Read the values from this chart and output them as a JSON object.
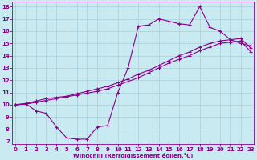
{
  "xlabel": "Windchill (Refroidissement éolien,°C)",
  "bg_color": "#c8eaf0",
  "grid_color": "#a8d0dc",
  "line_color": "#880088",
  "xmin": 0,
  "xmax": 23,
  "ymin": 7,
  "ymax": 18,
  "xticks": [
    0,
    1,
    2,
    3,
    4,
    5,
    6,
    7,
    8,
    9,
    10,
    11,
    12,
    13,
    14,
    15,
    16,
    17,
    18,
    19,
    20,
    21,
    22,
    23
  ],
  "yticks": [
    7,
    8,
    9,
    10,
    11,
    12,
    13,
    14,
    15,
    16,
    17,
    18
  ],
  "line1_x": [
    0,
    1,
    2,
    3,
    4,
    5,
    6,
    7,
    8,
    9,
    10,
    11,
    12,
    13,
    14,
    15,
    16,
    17,
    18,
    19,
    20,
    21,
    22,
    23
  ],
  "line1_y": [
    10,
    10.1,
    9.5,
    9.3,
    8.2,
    7.3,
    7.2,
    7.2,
    8.2,
    8.3,
    11.0,
    13.0,
    16.4,
    16.5,
    17.0,
    16.8,
    16.6,
    16.5,
    18.0,
    16.3,
    16.0,
    15.3,
    15.0,
    14.8
  ],
  "line2_x": [
    0,
    1,
    2,
    3,
    4,
    5,
    6,
    7,
    8,
    9,
    10,
    11,
    12,
    13,
    14,
    15,
    16,
    17,
    18,
    19,
    20,
    21,
    22,
    23
  ],
  "line2_y": [
    10,
    10.1,
    10.3,
    10.5,
    10.6,
    10.7,
    10.9,
    11.1,
    11.3,
    11.5,
    11.8,
    12.1,
    12.5,
    12.8,
    13.2,
    13.6,
    14.0,
    14.3,
    14.7,
    15.0,
    15.2,
    15.3,
    15.4,
    14.6
  ],
  "line3_x": [
    0,
    1,
    2,
    3,
    4,
    5,
    6,
    7,
    8,
    9,
    10,
    11,
    12,
    13,
    14,
    15,
    16,
    17,
    18,
    19,
    20,
    21,
    22,
    23
  ],
  "line3_y": [
    10,
    10.05,
    10.2,
    10.35,
    10.5,
    10.65,
    10.8,
    10.95,
    11.1,
    11.3,
    11.6,
    11.9,
    12.2,
    12.6,
    13.0,
    13.4,
    13.7,
    14.0,
    14.4,
    14.7,
    15.0,
    15.1,
    15.2,
    14.3
  ]
}
